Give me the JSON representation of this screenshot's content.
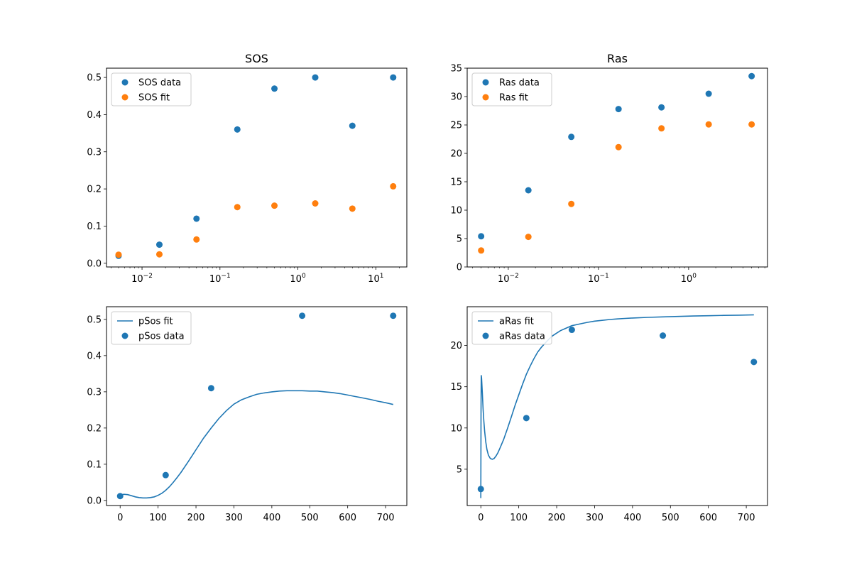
{
  "colors": {
    "blue": "#1f77b4",
    "orange": "#ff7f0e"
  },
  "chart_data": [
    {
      "type": "scatter",
      "title": "SOS",
      "xscale": "log",
      "xlim": [
        0.0035,
        25
      ],
      "ylim": [
        -0.01,
        0.525
      ],
      "xticks": [
        {
          "v": 0.01,
          "base": "10",
          "exp": "−2"
        },
        {
          "v": 0.1,
          "base": "10",
          "exp": "−1"
        },
        {
          "v": 1,
          "base": "10",
          "exp": "0"
        },
        {
          "v": 10,
          "base": "10",
          "exp": "1"
        }
      ],
      "yticks": [
        {
          "v": 0.0,
          "label": "0.0"
        },
        {
          "v": 0.1,
          "label": "0.1"
        },
        {
          "v": 0.2,
          "label": "0.2"
        },
        {
          "v": 0.3,
          "label": "0.3"
        },
        {
          "v": 0.4,
          "label": "0.4"
        },
        {
          "v": 0.5,
          "label": "0.5"
        }
      ],
      "legend": "top-left",
      "series": [
        {
          "name": "SOS data",
          "kind": "scatter",
          "color": "#1f77b4",
          "x": [
            0.005,
            0.0167,
            0.05,
            0.167,
            0.5,
            1.67,
            5,
            16.7
          ],
          "y": [
            0.02,
            0.05,
            0.12,
            0.36,
            0.47,
            0.5,
            0.37,
            0.5
          ]
        },
        {
          "name": "SOS fit",
          "kind": "scatter",
          "color": "#ff7f0e",
          "x": [
            0.005,
            0.0167,
            0.05,
            0.167,
            0.5,
            1.67,
            5,
            16.7
          ],
          "y": [
            0.023,
            0.024,
            0.064,
            0.151,
            0.155,
            0.161,
            0.147,
            0.207
          ]
        }
      ]
    },
    {
      "type": "scatter",
      "title": "Ras",
      "xscale": "log",
      "xlim": [
        0.0035,
        7.5
      ],
      "ylim": [
        0,
        35
      ],
      "xticks": [
        {
          "v": 0.01,
          "base": "10",
          "exp": "−2"
        },
        {
          "v": 0.1,
          "base": "10",
          "exp": "−1"
        },
        {
          "v": 1,
          "base": "10",
          "exp": "0"
        }
      ],
      "yticks": [
        {
          "v": 0,
          "label": "0"
        },
        {
          "v": 5,
          "label": "5"
        },
        {
          "v": 10,
          "label": "10"
        },
        {
          "v": 15,
          "label": "15"
        },
        {
          "v": 20,
          "label": "20"
        },
        {
          "v": 25,
          "label": "25"
        },
        {
          "v": 30,
          "label": "30"
        },
        {
          "v": 35,
          "label": "35"
        }
      ],
      "legend": "top-left",
      "series": [
        {
          "name": "Ras data",
          "kind": "scatter",
          "color": "#1f77b4",
          "x": [
            0.005,
            0.0167,
            0.05,
            0.167,
            0.5,
            1.67,
            5
          ],
          "y": [
            5.4,
            13.5,
            22.9,
            27.8,
            28.1,
            30.5,
            33.6
          ]
        },
        {
          "name": "Ras fit",
          "kind": "scatter",
          "color": "#ff7f0e",
          "x": [
            0.005,
            0.0167,
            0.05,
            0.167,
            0.5,
            1.67,
            5
          ],
          "y": [
            2.9,
            5.3,
            11.1,
            21.1,
            24.4,
            25.1,
            25.1
          ]
        }
      ]
    },
    {
      "type": "line",
      "title": "",
      "xscale": "linear",
      "xlim": [
        -36,
        756
      ],
      "ylim": [
        -0.014,
        0.535
      ],
      "xticks": [
        {
          "v": 0,
          "label": "0"
        },
        {
          "v": 100,
          "label": "100"
        },
        {
          "v": 200,
          "label": "200"
        },
        {
          "v": 300,
          "label": "300"
        },
        {
          "v": 400,
          "label": "400"
        },
        {
          "v": 500,
          "label": "500"
        },
        {
          "v": 600,
          "label": "600"
        },
        {
          "v": 700,
          "label": "700"
        }
      ],
      "yticks": [
        {
          "v": 0.0,
          "label": "0.0"
        },
        {
          "v": 0.1,
          "label": "0.1"
        },
        {
          "v": 0.2,
          "label": "0.2"
        },
        {
          "v": 0.3,
          "label": "0.3"
        },
        {
          "v": 0.4,
          "label": "0.4"
        },
        {
          "v": 0.5,
          "label": "0.5"
        }
      ],
      "legend": "top-left",
      "series": [
        {
          "name": "pSos fit",
          "kind": "line",
          "color": "#1f77b4",
          "x": [
            0,
            10,
            20,
            30,
            40,
            50,
            60,
            70,
            80,
            90,
            100,
            110,
            120,
            130,
            140,
            150,
            160,
            180,
            200,
            220,
            240,
            260,
            280,
            300,
            320,
            340,
            360,
            380,
            400,
            420,
            440,
            460,
            480,
            500,
            520,
            540,
            560,
            580,
            600,
            620,
            640,
            660,
            680,
            700,
            720
          ],
          "y": [
            0.015,
            0.017,
            0.016,
            0.013,
            0.01,
            0.008,
            0.007,
            0.007,
            0.008,
            0.01,
            0.014,
            0.02,
            0.028,
            0.038,
            0.05,
            0.063,
            0.077,
            0.108,
            0.14,
            0.172,
            0.2,
            0.226,
            0.248,
            0.266,
            0.278,
            0.286,
            0.293,
            0.297,
            0.3,
            0.302,
            0.303,
            0.303,
            0.303,
            0.302,
            0.302,
            0.3,
            0.298,
            0.295,
            0.291,
            0.287,
            0.283,
            0.279,
            0.274,
            0.27,
            0.265
          ]
        },
        {
          "name": "pSos data",
          "kind": "scatter",
          "color": "#1f77b4",
          "x": [
            0,
            120,
            240,
            480,
            720
          ],
          "y": [
            0.012,
            0.07,
            0.31,
            0.51,
            0.51
          ]
        }
      ]
    },
    {
      "type": "line",
      "title": "",
      "xscale": "linear",
      "xlim": [
        -36,
        756
      ],
      "ylim": [
        0.6,
        24.7
      ],
      "xticks": [
        {
          "v": 0,
          "label": "0"
        },
        {
          "v": 100,
          "label": "100"
        },
        {
          "v": 200,
          "label": "200"
        },
        {
          "v": 300,
          "label": "300"
        },
        {
          "v": 400,
          "label": "400"
        },
        {
          "v": 500,
          "label": "500"
        },
        {
          "v": 600,
          "label": "600"
        },
        {
          "v": 700,
          "label": "700"
        }
      ],
      "yticks": [
        {
          "v": 5,
          "label": "5"
        },
        {
          "v": 10,
          "label": "10"
        },
        {
          "v": 15,
          "label": "15"
        },
        {
          "v": 20,
          "label": "20"
        }
      ],
      "legend": "top-left",
      "series": [
        {
          "name": "aRas fit",
          "kind": "line",
          "color": "#1f77b4",
          "x": [
            0,
            0.5,
            1,
            2,
            4,
            6,
            8,
            10,
            13,
            16,
            20,
            25,
            30,
            35,
            40,
            45,
            50,
            60,
            70,
            80,
            90,
            100,
            110,
            120,
            130,
            140,
            150,
            160,
            170,
            180,
            190,
            200,
            210,
            220,
            240,
            260,
            280,
            300,
            320,
            340,
            360,
            380,
            400,
            440,
            480,
            520,
            560,
            600,
            640,
            680,
            720
          ],
          "y": [
            1.5,
            12.0,
            16.4,
            16.0,
            14.2,
            12.3,
            10.8,
            9.6,
            8.3,
            7.4,
            6.7,
            6.3,
            6.2,
            6.3,
            6.6,
            7.0,
            7.5,
            8.6,
            9.9,
            11.3,
            12.7,
            14.0,
            15.3,
            16.5,
            17.5,
            18.4,
            19.2,
            19.8,
            20.3,
            20.8,
            21.2,
            21.5,
            21.8,
            22.0,
            22.4,
            22.6,
            22.8,
            22.95,
            23.05,
            23.15,
            23.22,
            23.28,
            23.33,
            23.41,
            23.47,
            23.52,
            23.57,
            23.61,
            23.65,
            23.68,
            23.72
          ]
        },
        {
          "name": "aRas data",
          "kind": "scatter",
          "color": "#1f77b4",
          "x": [
            0,
            120,
            240,
            480,
            720
          ],
          "y": [
            2.6,
            11.2,
            21.9,
            21.2,
            18.0
          ]
        }
      ]
    }
  ]
}
